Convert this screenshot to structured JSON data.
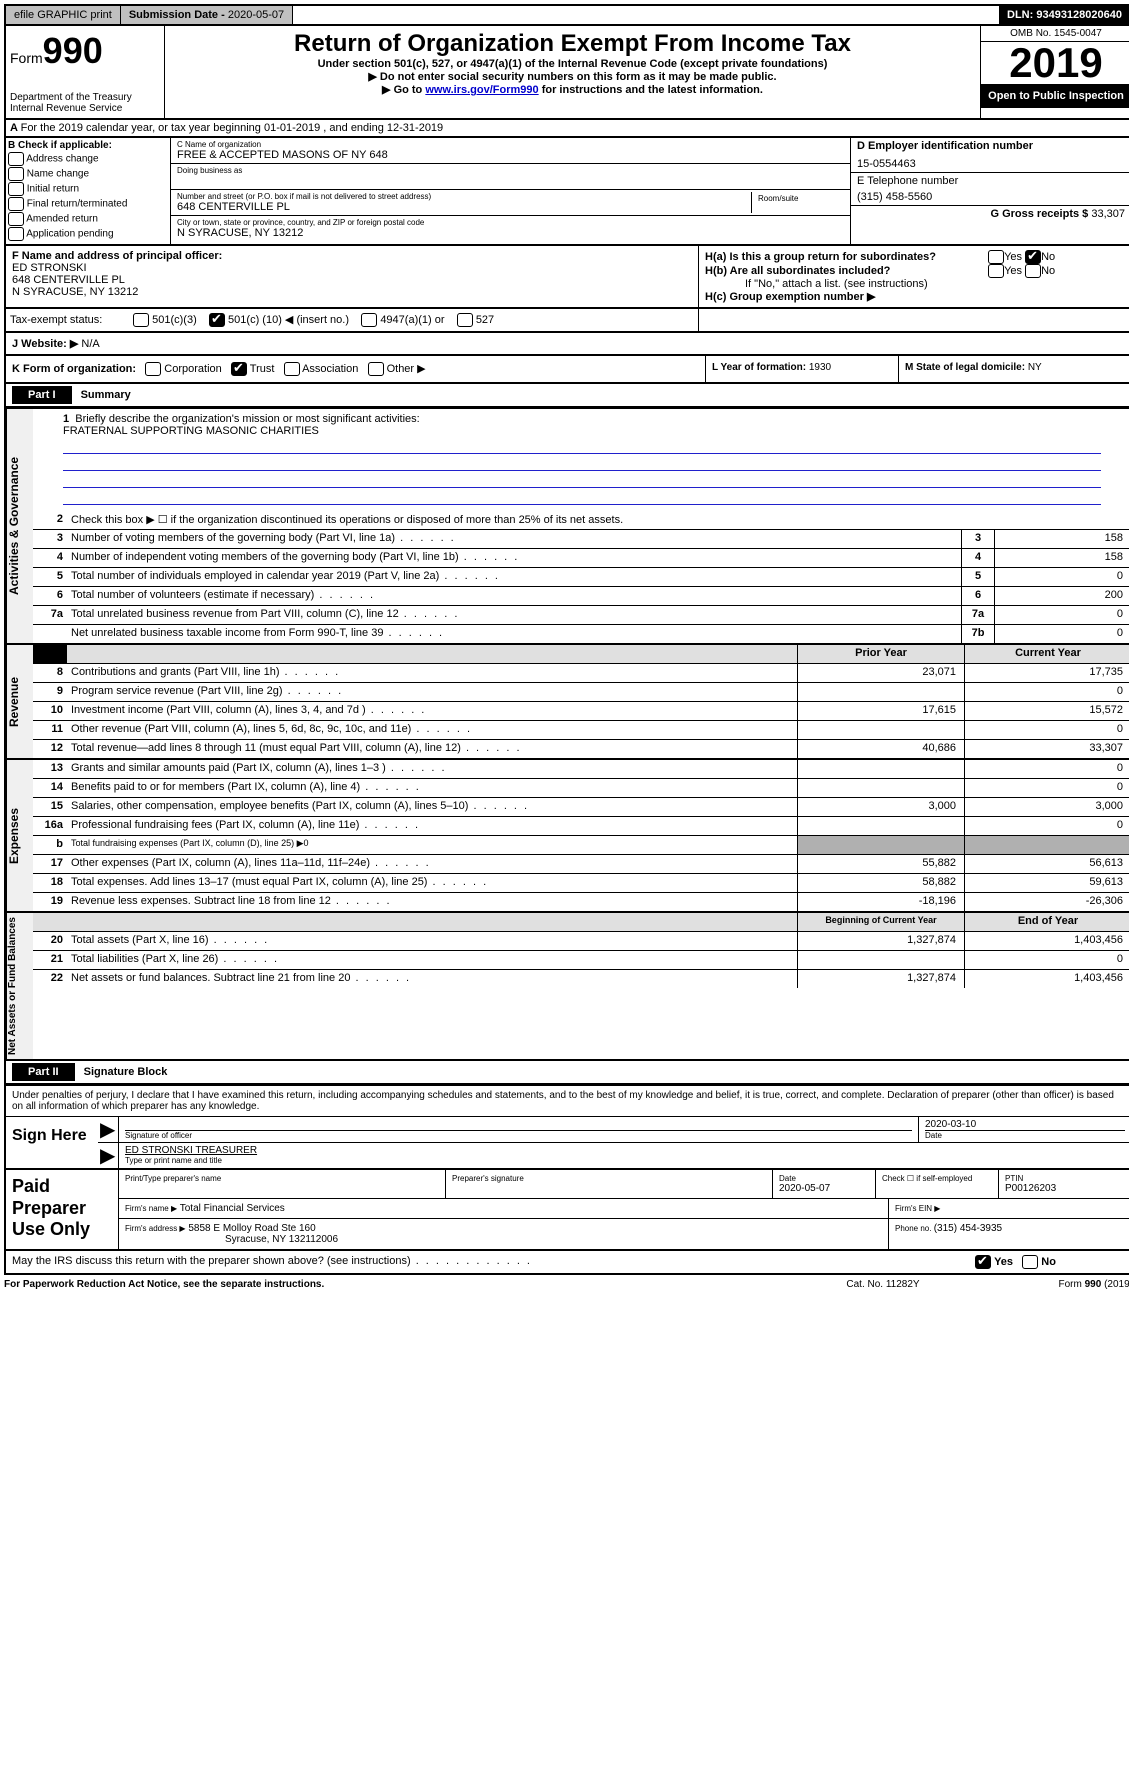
{
  "topbar": {
    "efile": "efile GRAPHIC print",
    "subdate_label": "Submission Date - ",
    "subdate": "2020-05-07",
    "dln": "DLN: 93493128020640"
  },
  "header": {
    "form_prefix": "Form",
    "form_num": "990",
    "dept": "Department of the Treasury\nInternal Revenue Service",
    "title": "Return of Organization Exempt From Income Tax",
    "subtitle": "Under section 501(c), 527, or 4947(a)(1) of the Internal Revenue Code (except private foundations)",
    "line1": "▶ Do not enter social security numbers on this form as it may be made public.",
    "line2_a": "▶ Go to ",
    "line2_link": "www.irs.gov/Form990",
    "line2_b": " for instructions and the latest information.",
    "omb": "OMB No. 1545-0047",
    "year": "2019",
    "open": "Open to Public Inspection"
  },
  "section_a": "For the 2019 calendar year, or tax year beginning 01-01-2019   , and ending 12-31-2019",
  "section_b": {
    "title": "B Check if applicable:",
    "opts": [
      "Address change",
      "Name change",
      "Initial return",
      "Final return/terminated",
      "Amended return",
      "Application pending"
    ]
  },
  "section_c": {
    "name_label": "C Name of organization",
    "name": "FREE & ACCEPTED MASONS OF NY 648",
    "dba": "Doing business as",
    "addr_label": "Number and street (or P.O. box if mail is not delivered to street address)",
    "room": "Room/suite",
    "addr": "648 CENTERVILLE PL",
    "city_label": "City or town, state or province, country, and ZIP or foreign postal code",
    "city": "N SYRACUSE, NY  13212"
  },
  "section_d": {
    "ein_label": "D Employer identification number",
    "ein": "15-0554463",
    "phone_label": "E Telephone number",
    "phone": "(315) 458-5560",
    "gross_label": "G Gross receipts $ ",
    "gross": "33,307"
  },
  "section_f": {
    "label": "F  Name and address of principal officer:",
    "name": "ED STRONSKI",
    "addr": "648 CENTERVILLE PL",
    "city": "N SYRACUSE, NY  13212"
  },
  "section_h": {
    "a": "H(a)  Is this a group return for subordinates?",
    "b": "H(b)  Are all subordinates included?",
    "note": "If \"No,\" attach a list. (see instructions)",
    "c": "H(c)  Group exemption number ▶",
    "yes": "Yes",
    "no": "No"
  },
  "tax_status": {
    "label": "Tax-exempt status:",
    "o1": "501(c)(3)",
    "o2_a": "501(c) (",
    "o2_v": "10",
    "o2_b": ") ◀ (insert no.)",
    "o3": "4947(a)(1) or",
    "o4": "527"
  },
  "website": {
    "label": "J   Website: ▶  ",
    "val": "N/A"
  },
  "row_k": {
    "label": "K Form of organization:",
    "corp": "Corporation",
    "trust": "Trust",
    "assoc": "Association",
    "other": "Other ▶",
    "year_label": "L Year of formation: ",
    "year": "1930",
    "state_label": "M State of legal domicile: ",
    "state": "NY"
  },
  "part1": {
    "hdr": "Part I",
    "title": "Summary",
    "l1": "Briefly describe the organization's mission or most significant activities:",
    "l1v": "FRATERNAL SUPPORTING MASONIC CHARITIES",
    "l2": "Check this box ▶ ☐  if the organization discontinued its operations or disposed of more than 25% of its net assets.",
    "rows_top": [
      {
        "n": "3",
        "d": "Number of voting members of the governing body (Part VI, line 1a)",
        "c": "3",
        "v": "158"
      },
      {
        "n": "4",
        "d": "Number of independent voting members of the governing body (Part VI, line 1b)",
        "c": "4",
        "v": "158"
      },
      {
        "n": "5",
        "d": "Total number of individuals employed in calendar year 2019 (Part V, line 2a)",
        "c": "5",
        "v": "0"
      },
      {
        "n": "6",
        "d": "Total number of volunteers (estimate if necessary)",
        "c": "6",
        "v": "200"
      },
      {
        "n": "7a",
        "d": "Total unrelated business revenue from Part VIII, column (C), line 12",
        "c": "7a",
        "v": "0"
      },
      {
        "n": "",
        "d": "Net unrelated business taxable income from Form 990-T, line 39",
        "c": "7b",
        "v": "0"
      }
    ],
    "col_prior": "Prior Year",
    "col_current": "Current Year",
    "revenue": [
      {
        "n": "8",
        "d": "Contributions and grants (Part VIII, line 1h)",
        "p": "23,071",
        "c": "17,735"
      },
      {
        "n": "9",
        "d": "Program service revenue (Part VIII, line 2g)",
        "p": "",
        "c": "0"
      },
      {
        "n": "10",
        "d": "Investment income (Part VIII, column (A), lines 3, 4, and 7d )",
        "p": "17,615",
        "c": "15,572"
      },
      {
        "n": "11",
        "d": "Other revenue (Part VIII, column (A), lines 5, 6d, 8c, 9c, 10c, and 11e)",
        "p": "",
        "c": "0"
      },
      {
        "n": "12",
        "d": "Total revenue—add lines 8 through 11 (must equal Part VIII, column (A), line 12)",
        "p": "40,686",
        "c": "33,307"
      }
    ],
    "expenses": [
      {
        "n": "13",
        "d": "Grants and similar amounts paid (Part IX, column (A), lines 1–3 )",
        "p": "",
        "c": "0"
      },
      {
        "n": "14",
        "d": "Benefits paid to or for members (Part IX, column (A), line 4)",
        "p": "",
        "c": "0"
      },
      {
        "n": "15",
        "d": "Salaries, other compensation, employee benefits (Part IX, column (A), lines 5–10)",
        "p": "3,000",
        "c": "3,000"
      },
      {
        "n": "16a",
        "d": "Professional fundraising fees (Part IX, column (A), line 11e)",
        "p": "",
        "c": "0"
      },
      {
        "n": "b",
        "d": "Total fundraising expenses (Part IX, column (D), line 25) ▶0",
        "p": null,
        "c": null
      },
      {
        "n": "17",
        "d": "Other expenses (Part IX, column (A), lines 11a–11d, 11f–24e)",
        "p": "55,882",
        "c": "56,613"
      },
      {
        "n": "18",
        "d": "Total expenses. Add lines 13–17 (must equal Part IX, column (A), line 25)",
        "p": "58,882",
        "c": "59,613"
      },
      {
        "n": "19",
        "d": "Revenue less expenses. Subtract line 18 from line 12",
        "p": "-18,196",
        "c": "-26,306"
      }
    ],
    "col_begin": "Beginning of Current Year",
    "col_end": "End of Year",
    "netassets": [
      {
        "n": "20",
        "d": "Total assets (Part X, line 16)",
        "p": "1,327,874",
        "c": "1,403,456"
      },
      {
        "n": "21",
        "d": "Total liabilities (Part X, line 26)",
        "p": "",
        "c": "0"
      },
      {
        "n": "22",
        "d": "Net assets or fund balances. Subtract line 21 from line 20",
        "p": "1,327,874",
        "c": "1,403,456"
      }
    ],
    "side_gov": "Activities & Governance",
    "side_rev": "Revenue",
    "side_exp": "Expenses",
    "side_net": "Net Assets or Fund Balances"
  },
  "part2": {
    "hdr": "Part II",
    "title": "Signature Block",
    "declare": "Under penalties of perjury, I declare that I have examined this return, including accompanying schedules and statements, and to the best of my knowledge and belief, it is true, correct, and complete. Declaration of preparer (other than officer) is based on all information of which preparer has any knowledge.",
    "sign": "Sign Here",
    "sig_officer": "Signature of officer",
    "date_label": "Date",
    "date": "2020-03-10",
    "name_title": "ED STRONSKI TREASURER",
    "type_name": "Type or print name and title",
    "paid": "Paid Preparer Use Only",
    "prep_name_l": "Print/Type preparer's name",
    "prep_sig_l": "Preparer's signature",
    "prep_date_l": "Date",
    "prep_date": "2020-05-07",
    "check_l": "Check ☐ if self-employed",
    "ptin_l": "PTIN",
    "ptin": "P00126203",
    "firm_name_l": "Firm's name    ▶",
    "firm_name": "Total Financial Services",
    "firm_ein_l": "Firm's EIN ▶",
    "firm_addr_l": "Firm's address ▶",
    "firm_addr1": "5858 E Molloy Road Ste 160",
    "firm_addr2": "Syracuse, NY  132112006",
    "phone_l": "Phone no. ",
    "phone": "(315) 454-3935",
    "discuss": "May the IRS discuss this return with the preparer shown above? (see instructions)"
  },
  "footer": {
    "pra": "For Paperwork Reduction Act Notice, see the separate instructions.",
    "cat": "Cat. No. 11282Y",
    "form": "Form 990 (2019)"
  }
}
